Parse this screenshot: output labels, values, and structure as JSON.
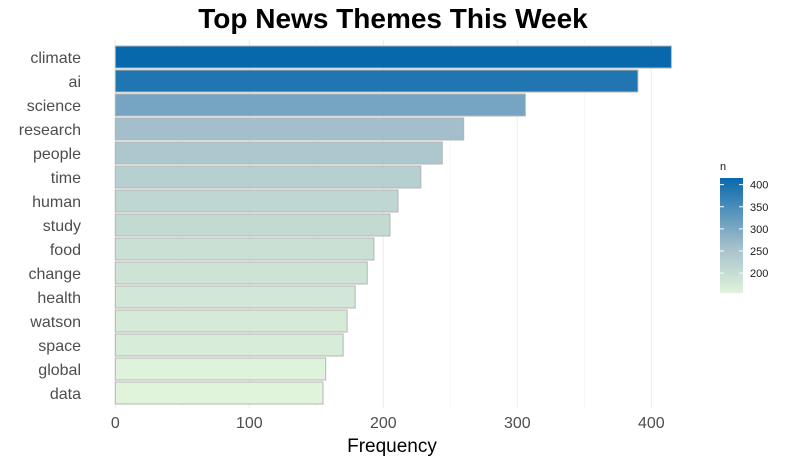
{
  "chart_data": {
    "type": "bar",
    "orientation": "horizontal",
    "title": "Top News Themes This Week",
    "xlabel": "Frequency",
    "ylabel": "",
    "categories": [
      "climate",
      "ai",
      "science",
      "research",
      "people",
      "time",
      "human",
      "study",
      "food",
      "change",
      "health",
      "watson",
      "space",
      "global",
      "data"
    ],
    "values": [
      415,
      390,
      306,
      260,
      244,
      228,
      211,
      205,
      193,
      188,
      179,
      173,
      170,
      157,
      155
    ],
    "xlim": [
      0,
      415
    ],
    "xticks": [
      0,
      100,
      200,
      300,
      400
    ],
    "grid": true,
    "legend": {
      "title": "n",
      "placement": "right",
      "ticks": [
        200,
        250,
        300,
        350,
        400
      ],
      "range": [
        155,
        415
      ]
    },
    "colors": {
      "low": "#e0f3db",
      "mid": "#a3bfcb",
      "high": "#0868ac",
      "outline": "#b5b5b5",
      "grid": "#ebebeb"
    }
  }
}
